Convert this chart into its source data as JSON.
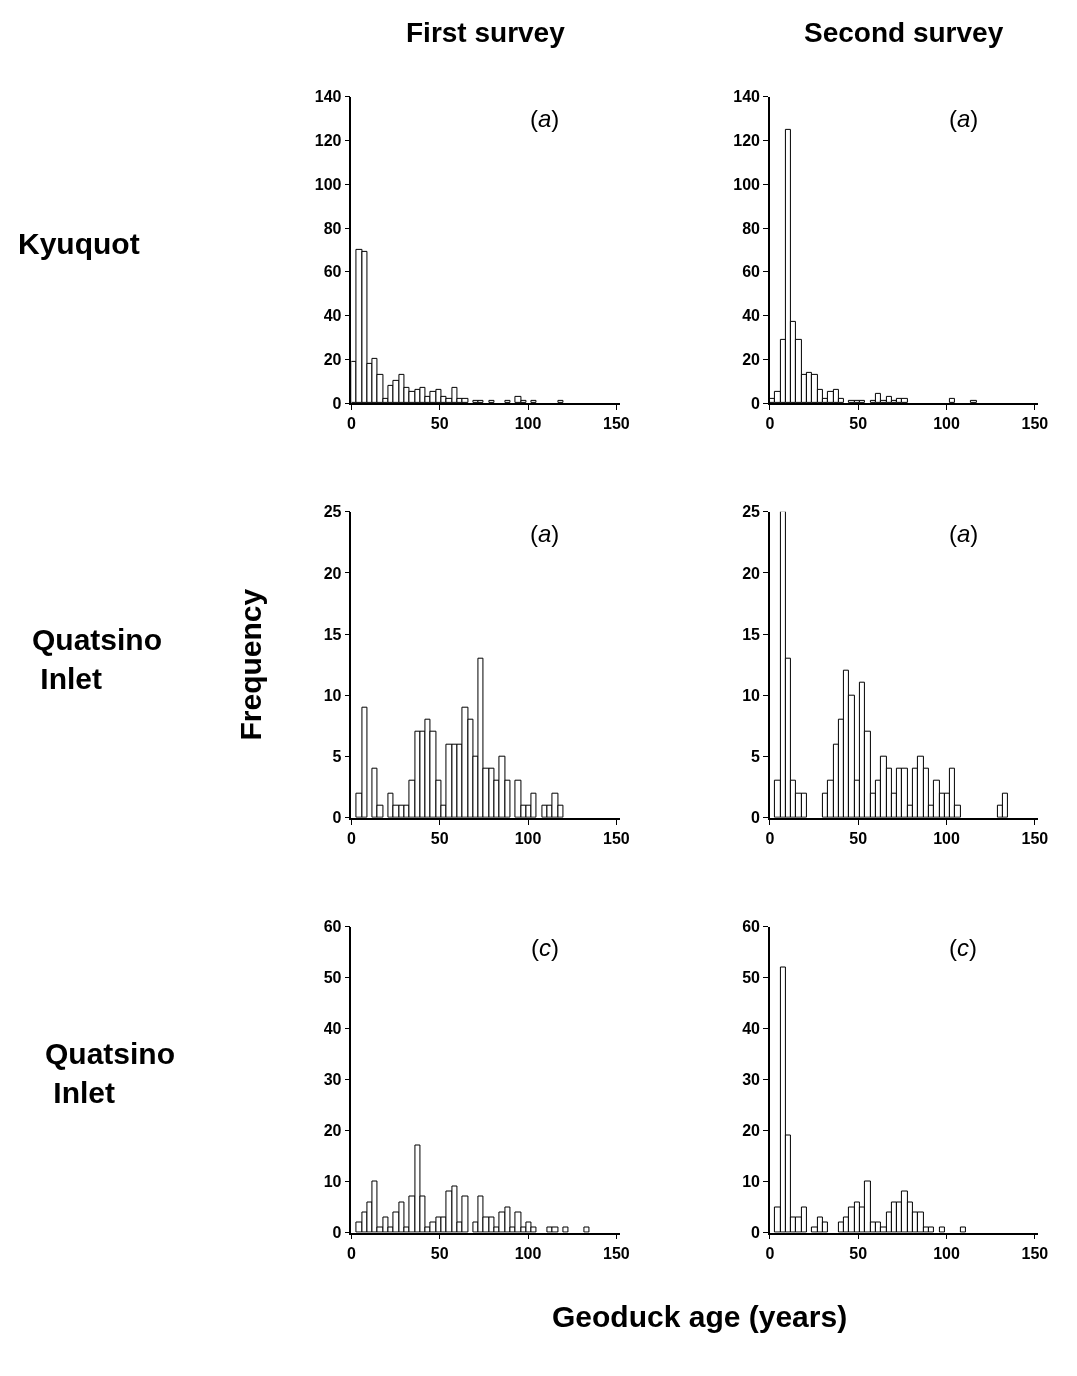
{
  "chart_data": [
    {
      "type": "histogram",
      "title": "First survey",
      "annotations": [
        "Kyuquot",
        "(a)"
      ],
      "color": "#ffffff",
      "bins": [
        0,
        3,
        6,
        9,
        12,
        15,
        18,
        21,
        24,
        27,
        30,
        33,
        36,
        39,
        42,
        45,
        48,
        51,
        54,
        57,
        60,
        63,
        66,
        69,
        72,
        75,
        78,
        81,
        84,
        87,
        90,
        93,
        96,
        99,
        102,
        105,
        108,
        111,
        114,
        117,
        120,
        123,
        126,
        129,
        132,
        135,
        138,
        141,
        144,
        147,
        150
      ],
      "values": [
        19,
        70,
        69,
        18,
        20,
        13,
        2,
        8,
        10,
        13,
        7,
        5,
        6,
        7,
        3,
        5,
        6,
        3,
        2,
        7,
        2,
        2,
        0,
        1,
        1,
        0,
        1,
        0,
        0,
        1,
        0,
        3,
        1,
        0,
        1,
        0,
        0,
        0,
        0,
        1,
        0,
        0,
        0,
        0,
        0,
        0,
        0,
        0,
        0,
        0
      ],
      "xlim": [
        0,
        152
      ],
      "xticks": [
        0,
        50,
        100,
        150
      ],
      "ylim": [
        0,
        140
      ],
      "yticks": [
        0,
        20,
        40,
        60,
        80,
        100,
        120,
        140
      ]
    },
    {
      "type": "histogram",
      "title": "Second survey",
      "annotations": [
        "(a)"
      ],
      "color": "#ffffff",
      "bins": [
        0,
        3,
        6,
        9,
        12,
        15,
        18,
        21,
        24,
        27,
        30,
        33,
        36,
        39,
        42,
        45,
        48,
        51,
        54,
        57,
        60,
        63,
        66,
        69,
        72,
        75,
        78,
        81,
        84,
        87,
        90,
        93,
        96,
        99,
        102,
        105,
        108,
        111,
        114,
        117,
        120,
        123,
        126,
        129,
        132,
        135,
        138,
        141,
        144,
        147,
        150
      ],
      "values": [
        2,
        5,
        29,
        125,
        37,
        29,
        13,
        14,
        13,
        6,
        2,
        5,
        6,
        2,
        0,
        1,
        1,
        1,
        0,
        1,
        4,
        1,
        3,
        1,
        2,
        2,
        0,
        0,
        0,
        0,
        0,
        0,
        0,
        0,
        2,
        0,
        0,
        0,
        1,
        0,
        0,
        0,
        0,
        0,
        0,
        0,
        0,
        0,
        0,
        0
      ],
      "xlim": [
        0,
        152
      ],
      "xticks": [
        0,
        50,
        100,
        150
      ],
      "ylim": [
        0,
        140
      ],
      "yticks": [
        0,
        20,
        40,
        60,
        80,
        100,
        120,
        140
      ]
    },
    {
      "type": "histogram",
      "ylabel": "Frequency",
      "annotations": [
        "Quatsino\n Inlet",
        "(a)"
      ],
      "color": "#ffffff",
      "bins": [
        0,
        3,
        6,
        9,
        12,
        15,
        18,
        21,
        24,
        27,
        30,
        33,
        36,
        39,
        42,
        45,
        48,
        51,
        54,
        57,
        60,
        63,
        66,
        69,
        72,
        75,
        78,
        81,
        84,
        87,
        90,
        93,
        96,
        99,
        102,
        105,
        108,
        111,
        114,
        117,
        120,
        123,
        126,
        129,
        132,
        135,
        138,
        141,
        144,
        147,
        150
      ],
      "values": [
        0,
        2,
        9,
        0,
        4,
        1,
        0,
        2,
        1,
        1,
        1,
        3,
        7,
        7,
        8,
        7,
        3,
        1,
        6,
        6,
        6,
        9,
        8,
        5,
        13,
        4,
        4,
        3,
        5,
        3,
        0,
        3,
        1,
        1,
        2,
        0,
        1,
        1,
        2,
        1,
        0,
        0,
        0,
        0,
        0,
        0,
        0,
        0,
        0,
        0
      ],
      "xlim": [
        0,
        152
      ],
      "xticks": [
        0,
        50,
        100,
        150
      ],
      "ylim": [
        0,
        25
      ],
      "yticks": [
        0,
        5,
        10,
        15,
        20,
        25
      ]
    },
    {
      "type": "histogram",
      "annotations": [
        "(a)"
      ],
      "color": "#ffffff",
      "bins": [
        0,
        3,
        6,
        9,
        12,
        15,
        18,
        21,
        24,
        27,
        30,
        33,
        36,
        39,
        42,
        45,
        48,
        51,
        54,
        57,
        60,
        63,
        66,
        69,
        72,
        75,
        78,
        81,
        84,
        87,
        90,
        93,
        96,
        99,
        102,
        105,
        108,
        111,
        114,
        117,
        120,
        123,
        126,
        129,
        132,
        135,
        138,
        141,
        144,
        147,
        150
      ],
      "values": [
        0,
        3,
        25,
        13,
        3,
        2,
        2,
        0,
        0,
        0,
        2,
        3,
        6,
        8,
        12,
        10,
        3,
        11,
        7,
        2,
        3,
        5,
        4,
        2,
        4,
        4,
        1,
        4,
        5,
        4,
        1,
        3,
        2,
        2,
        4,
        1,
        0,
        0,
        0,
        0,
        0,
        0,
        0,
        1,
        2,
        0,
        0,
        0,
        0,
        0
      ],
      "xlim": [
        0,
        152
      ],
      "xticks": [
        0,
        50,
        100,
        150
      ],
      "ylim": [
        0,
        25
      ],
      "yticks": [
        0,
        5,
        10,
        15,
        20,
        25
      ]
    },
    {
      "type": "histogram",
      "xlabel": "Geoduck age (years)",
      "annotations": [
        "Quatsino\n Inlet",
        "(c)"
      ],
      "color": "#ffffff",
      "bins": [
        0,
        3,
        6,
        9,
        12,
        15,
        18,
        21,
        24,
        27,
        30,
        33,
        36,
        39,
        42,
        45,
        48,
        51,
        54,
        57,
        60,
        63,
        66,
        69,
        72,
        75,
        78,
        81,
        84,
        87,
        90,
        93,
        96,
        99,
        102,
        105,
        108,
        111,
        114,
        117,
        120,
        123,
        126,
        129,
        132,
        135,
        138,
        141,
        144,
        147,
        150
      ],
      "values": [
        0,
        2,
        4,
        6,
        10,
        1,
        3,
        1,
        4,
        6,
        1,
        7,
        17,
        7,
        1,
        2,
        3,
        3,
        8,
        9,
        2,
        7,
        0,
        2,
        7,
        3,
        3,
        1,
        4,
        5,
        1,
        4,
        1,
        2,
        1,
        0,
        0,
        1,
        1,
        0,
        1,
        0,
        0,
        0,
        1,
        0,
        0,
        0,
        0,
        0
      ],
      "xlim": [
        0,
        152
      ],
      "xticks": [
        0,
        50,
        100,
        150
      ],
      "ylim": [
        0,
        60
      ],
      "yticks": [
        0,
        10,
        20,
        30,
        40,
        50,
        60
      ]
    },
    {
      "type": "histogram",
      "annotations": [
        "(c)"
      ],
      "color": "#ffffff",
      "bins": [
        0,
        3,
        6,
        9,
        12,
        15,
        18,
        21,
        24,
        27,
        30,
        33,
        36,
        39,
        42,
        45,
        48,
        51,
        54,
        57,
        60,
        63,
        66,
        69,
        72,
        75,
        78,
        81,
        84,
        87,
        90,
        93,
        96,
        99,
        102,
        105,
        108,
        111,
        114,
        117,
        120,
        123,
        126,
        129,
        132,
        135,
        138,
        141,
        144,
        147,
        150
      ],
      "values": [
        0,
        5,
        52,
        19,
        3,
        3,
        5,
        0,
        1,
        3,
        2,
        0,
        0,
        2,
        3,
        5,
        6,
        5,
        10,
        2,
        2,
        1,
        4,
        6,
        6,
        8,
        6,
        4,
        4,
        1,
        1,
        0,
        1,
        0,
        0,
        0,
        1,
        0,
        0,
        0,
        0,
        0,
        0,
        0,
        0,
        0,
        0,
        0,
        0,
        0
      ],
      "xlim": [
        0,
        152
      ],
      "xticks": [
        0,
        50,
        100,
        150
      ],
      "ylim": [
        0,
        60
      ],
      "yticks": [
        0,
        10,
        20,
        30,
        40,
        50,
        60
      ]
    }
  ]
}
